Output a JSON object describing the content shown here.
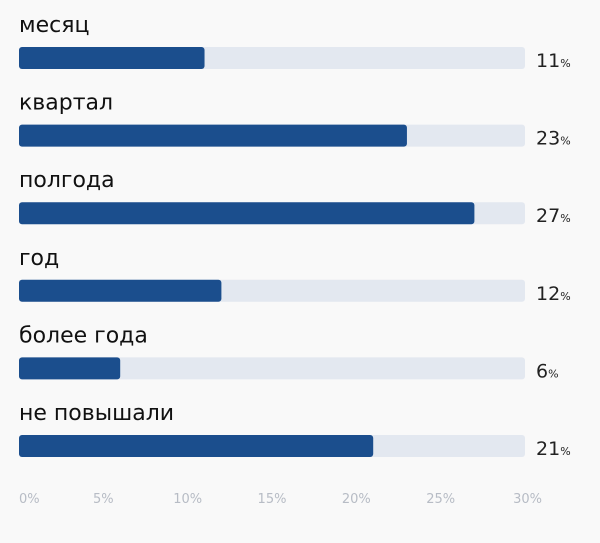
{
  "chart_data": {
    "type": "bar",
    "orientation": "horizontal",
    "categories": [
      "месяц",
      "квартал",
      "полгода",
      "год",
      "более года",
      "не повышали"
    ],
    "values": [
      11,
      23,
      27,
      12,
      6,
      21
    ],
    "value_labels": [
      "11",
      "23",
      "27",
      "12",
      "6",
      "21"
    ],
    "value_unit": "%",
    "xlim": [
      0,
      30
    ],
    "x_ticks": [
      "0%",
      "5%",
      "10%",
      "15%",
      "20%",
      "25%",
      "30%"
    ],
    "grid": false,
    "legend": "none",
    "colors": {
      "bar": "#1b4e8d",
      "track": "#e3e8f0"
    }
  }
}
